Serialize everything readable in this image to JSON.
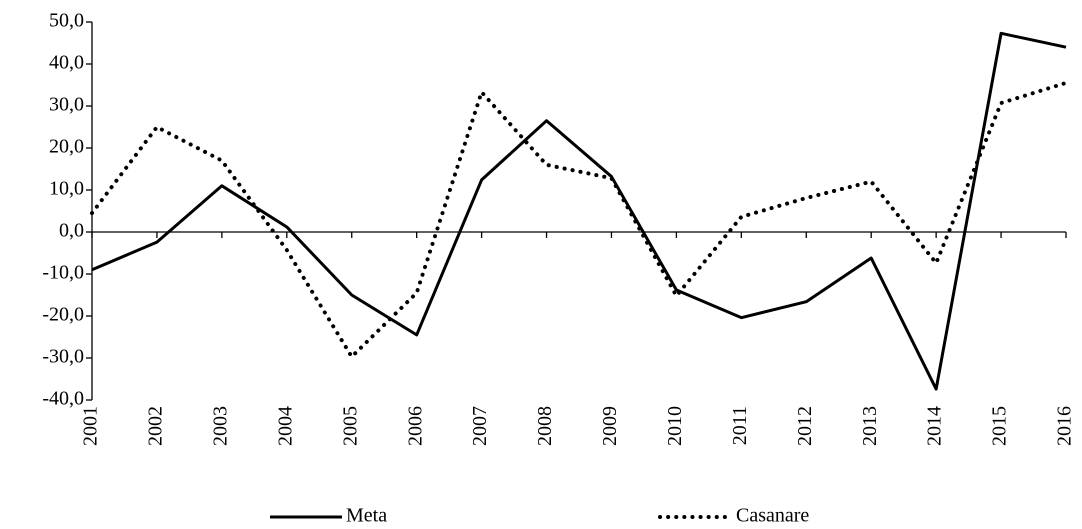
{
  "chart_data": {
    "type": "line",
    "categories": [
      "2001",
      "2002",
      "2003",
      "2004",
      "2005",
      "2006",
      "2007",
      "2008",
      "2009",
      "2010",
      "2011",
      "2012",
      "2013",
      "2014",
      "2015",
      "2016"
    ],
    "series": [
      {
        "name": "Meta",
        "color": "#000000",
        "style": "solid",
        "values": [
          -9.0,
          -2.4,
          11.0,
          1.2,
          -15.0,
          -24.5,
          12.4,
          26.5,
          13.2,
          -13.8,
          -20.4,
          -16.6,
          -6.2,
          -37.4,
          47.3,
          44.0
        ]
      },
      {
        "name": "Casanare",
        "color": "#000000",
        "style": "dotted",
        "values": [
          4.5,
          25.0,
          17.0,
          -4.3,
          -29.7,
          -14.5,
          33.3,
          16.0,
          12.8,
          -15.2,
          3.6,
          8.1,
          12.0,
          -7.4,
          30.7,
          35.5
        ]
      }
    ],
    "ylim": [
      -40,
      50
    ],
    "yticks": [
      {
        "value": -40,
        "label": "-40,0"
      },
      {
        "value": -30,
        "label": "-30,0"
      },
      {
        "value": -20,
        "label": "-20,0"
      },
      {
        "value": -10,
        "label": "-10,0"
      },
      {
        "value": 0,
        "label": "0,0"
      },
      {
        "value": 10,
        "label": "10,0"
      },
      {
        "value": 20,
        "label": "20,0"
      },
      {
        "value": 30,
        "label": "30,0"
      },
      {
        "value": 40,
        "label": "40,0"
      },
      {
        "value": 50,
        "label": "50,0"
      }
    ],
    "grid": false
  }
}
